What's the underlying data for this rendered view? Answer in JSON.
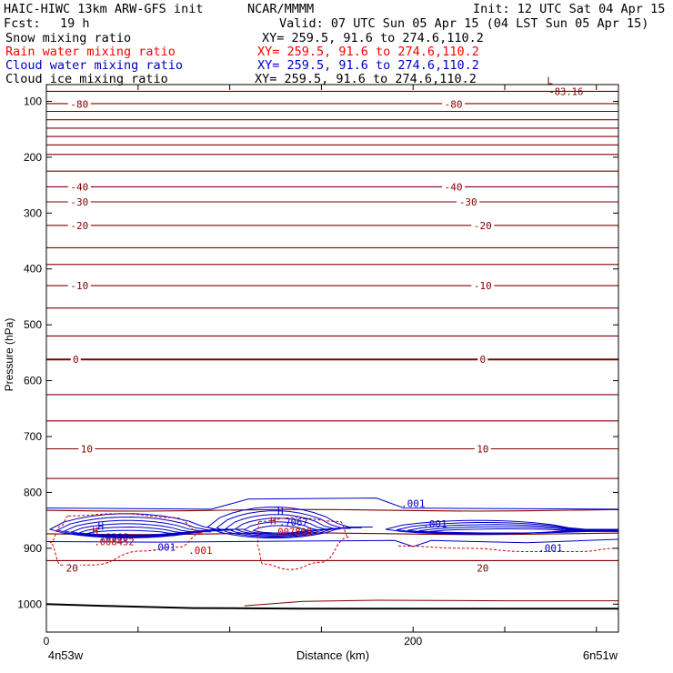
{
  "header": {
    "model": "HAIC-HIWC 13km ARW-GFS init",
    "org": "NCAR/MMMM",
    "init": "Init: 12 UTC Sat 04 Apr 15",
    "fcst_label": "Fcst:",
    "fcst_value": "19 h",
    "valid": "Valid: 07 UTC Sun 05 Apr 15 (04 LST Sun 05 Apr 15)"
  },
  "fields": [
    {
      "name": "Snow mixing ratio",
      "xy": "XY= 259.5, 91.6 to 274.6,110.2",
      "color": "#000000"
    },
    {
      "name": "Rain water mixing ratio",
      "xy": "XY= 259.5, 91.6 to 274.6,110.2",
      "color": "#ff0000"
    },
    {
      "name": "Cloud water mixing ratio",
      "xy": "XY= 259.5, 91.6 to 274.6,110.2",
      "color": "#0000c8"
    },
    {
      "name": "Cloud ice mixing ratio",
      "xy": "XY= 259.5, 91.6 to 274.6,110.2",
      "color": "#000000"
    }
  ],
  "chart_data": {
    "type": "contour",
    "xlabel": "Distance (km)",
    "ylabel": "Pressure (hPa)",
    "xlim": [
      0,
      312
    ],
    "ylim": [
      1050,
      70
    ],
    "x_ticks": [
      0,
      50,
      100,
      150,
      200,
      250,
      300
    ],
    "x_tick_labels": [
      "0",
      "",
      "",
      "",
      "200",
      "",
      ""
    ],
    "y_ticks": [
      100,
      200,
      300,
      400,
      500,
      600,
      700,
      800,
      900,
      1000
    ],
    "y_tick_labels": [
      "100",
      "200",
      "300",
      "400",
      "500",
      "600",
      "700",
      "800",
      "900",
      "1000"
    ],
    "x_end_labels": {
      "left": "4n53w",
      "right": "6n51w"
    },
    "temperature_isotherm_pressures": [
      82,
      104,
      118,
      133,
      148,
      163,
      178,
      195,
      225,
      253,
      280,
      322,
      362,
      392,
      430,
      470,
      520,
      562,
      625,
      672,
      722,
      775,
      832,
      874,
      922
    ],
    "temperature_labels": [
      {
        "text": "-80",
        "x": 18,
        "p": 105
      },
      {
        "text": "-80",
        "x": 222,
        "p": 105
      },
      {
        "text": "-40",
        "x": 18,
        "p": 253
      },
      {
        "text": "-40",
        "x": 222,
        "p": 253
      },
      {
        "text": "-30",
        "x": 18,
        "p": 280
      },
      {
        "text": "-30",
        "x": 230,
        "p": 280
      },
      {
        "text": "-20",
        "x": 18,
        "p": 322
      },
      {
        "text": "-20",
        "x": 238,
        "p": 322
      },
      {
        "text": "-10",
        "x": 18,
        "p": 430
      },
      {
        "text": "-10",
        "x": 238,
        "p": 430
      },
      {
        "text": "0",
        "x": 16,
        "p": 562
      },
      {
        "text": "0",
        "x": 238,
        "p": 562
      },
      {
        "text": "10",
        "x": 22,
        "p": 722
      },
      {
        "text": "10",
        "x": 238,
        "p": 722
      },
      {
        "text": "20",
        "x": 14,
        "p": 935
      },
      {
        "text": "20",
        "x": 238,
        "p": 935
      }
    ],
    "extrema": [
      {
        "type": "L",
        "x": 273,
        "p": 82,
        "value": "-83.16",
        "color": "#800000"
      },
      {
        "type": "H",
        "x": 28,
        "p": 880,
        "value": ".6966",
        "color": "#0000c8"
      },
      {
        "type": "H",
        "x": 25,
        "p": 888,
        "value": ".008452",
        "color": "#c00000"
      },
      {
        "type": "H",
        "x": 126,
        "p": 853,
        "value": ".7067",
        "color": "#0000c8"
      },
      {
        "type": "H",
        "x": 122,
        "p": 870,
        "value": ".007809",
        "color": "#c00000"
      }
    ],
    "cloud_water_contour_labels": [
      ".001",
      ".001",
      ".001",
      ".001"
    ],
    "rain_water_contour_labels": [
      ".001"
    ]
  }
}
